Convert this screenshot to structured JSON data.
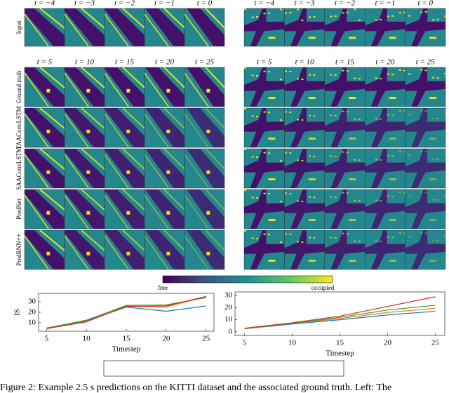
{
  "left_panel": {
    "input_times": [
      "t = −4",
      "t = −3",
      "t = −2",
      "t = −1",
      "t = 0"
    ],
    "pred_times": [
      "t = 5",
      "t = 10",
      "t = 15",
      "t = 20",
      "t = 25"
    ]
  },
  "right_panel": {
    "input_times": [
      "t = −4",
      "t = −3",
      "t = −2",
      "t = −1",
      "t = 0"
    ],
    "pred_times": [
      "t = 5",
      "t = 10",
      "t = 15",
      "t = 20",
      "t = 25"
    ]
  },
  "row_labels": [
    "Input",
    "Ground truth",
    "TAAConvLSTM",
    "SAAConvLSTM",
    "PredNet",
    "PredRNN++"
  ],
  "colorbar": {
    "low_label": "free",
    "high_label": "occupied"
  },
  "caption": "Figure 2: Example 2.5 s predictions on the KITTI dataset and the associated ground truth. Left: The",
  "chart_data": [
    {
      "type": "line",
      "ylabel": "IS",
      "xlabel": "Timestep",
      "x": [
        5,
        10,
        15,
        20,
        25
      ],
      "xlim": [
        4,
        26
      ],
      "xticks": [
        5,
        10,
        15,
        20,
        25
      ],
      "ylim": [
        2,
        38
      ],
      "yticks": [
        10,
        20,
        30
      ],
      "series": [
        {
          "name": "TAAConvLSTM",
          "color": "#1f77b4",
          "values": [
            5,
            12,
            25,
            21,
            26
          ]
        },
        {
          "name": "SAAConvLSTM",
          "color": "#ff7f0e",
          "values": [
            5,
            11,
            26,
            25,
            35
          ]
        },
        {
          "name": "PredNet",
          "color": "#2ca02c",
          "values": [
            5,
            12.5,
            26.5,
            27,
            34
          ]
        },
        {
          "name": "PredRNN++",
          "color": "#d62728",
          "values": [
            4.5,
            11,
            25.5,
            26,
            35
          ]
        }
      ]
    },
    {
      "type": "line",
      "xlabel": "Timestep",
      "x": [
        5,
        10,
        15,
        20,
        25
      ],
      "xlim": [
        4,
        26
      ],
      "xticks": [
        5,
        10,
        15,
        20,
        25
      ],
      "ylim": [
        -3,
        33
      ],
      "yticks": [
        0,
        10,
        20,
        30
      ],
      "series": [
        {
          "color": "#1f77b4",
          "values": [
            2.5,
            6.5,
            10,
            14,
            17
          ]
        },
        {
          "color": "#ff7f0e",
          "values": [
            2.5,
            7,
            11,
            16,
            19.5
          ]
        },
        {
          "color": "#2ca02c",
          "values": [
            2.7,
            7,
            12,
            18,
            22
          ]
        },
        {
          "color": "#d62728",
          "values": [
            3,
            7.5,
            13,
            21,
            29
          ]
        }
      ]
    }
  ]
}
